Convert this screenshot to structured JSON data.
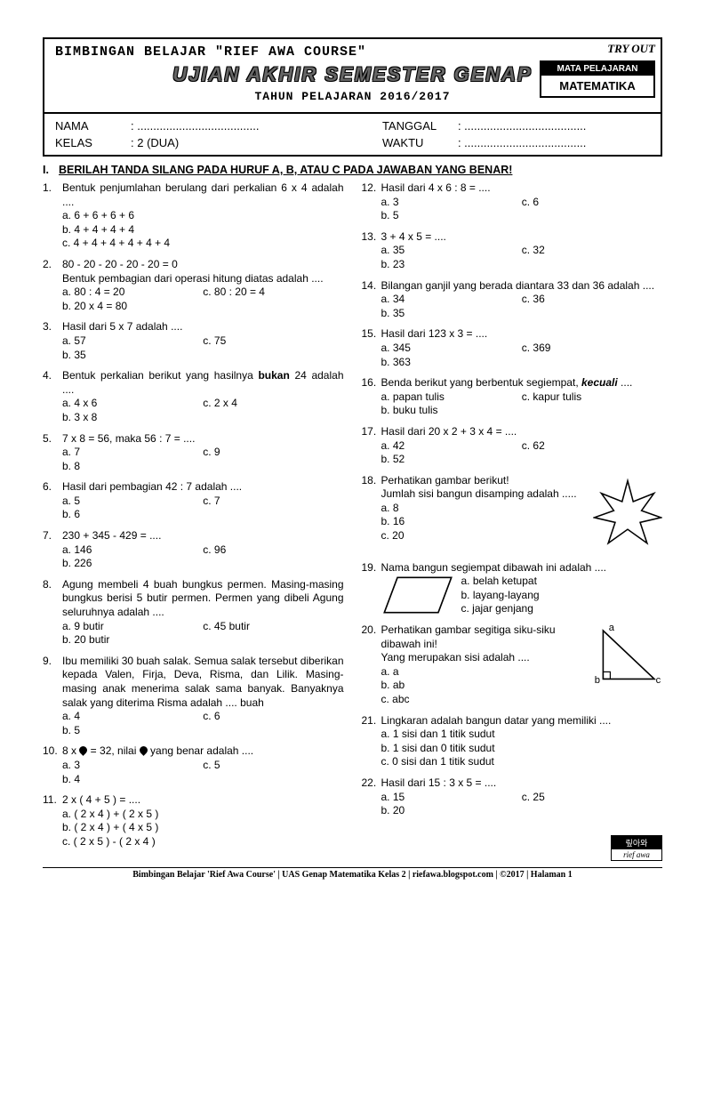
{
  "header": {
    "brand": "BIMBINGAN BELAJAR \"RIEF AWA COURSE\"",
    "main_title": "UJIAN AKHIR SEMESTER GENAP",
    "year_line": "TAHUN PELAJARAN 2016/2017",
    "tryout": "TRY OUT",
    "subject_head": "MATA PELAJARAN",
    "subject": "MATEMATIKA",
    "nama_label": "NAMA",
    "nama_value": ": ......................................",
    "tanggal_label": "TANGGAL",
    "tanggal_value": ": ......................................",
    "kelas_label": "KELAS",
    "kelas_value": ": 2 (DUA)",
    "waktu_label": "WAKTU",
    "waktu_value": ": ......................................"
  },
  "section": {
    "roman": "I.",
    "title": "BERILAH TANDA SILANG PADA HURUF A, B, ATAU C PADA JAWABAN YANG BENAR!"
  },
  "left": [
    {
      "n": "1.",
      "t": "Bentuk penjumlahan berulang dari perkalian 6 x 4 adalah ....",
      "justify": true,
      "o": [
        "a.  6 + 6 + 6 + 6",
        "b.  4 + 4 + 4 + 4",
        "c.  4 + 4 + 4 + 4 + 4 + 4"
      ]
    },
    {
      "n": "2.",
      "t": "80 - 20 - 20 - 20 - 20 = 0",
      "t2": "Bentuk pembagian dari operasi hitung diatas adalah ....",
      "o2": [
        [
          "a.  80 : 4 = 20",
          "c.  80 : 20 = 4"
        ],
        [
          "b.  20 x 4 = 80",
          ""
        ]
      ]
    },
    {
      "n": "3.",
      "t": "Hasil dari 5 x 7 adalah ....",
      "o2": [
        [
          "a.  57",
          "c.  75"
        ],
        [
          "b.  35",
          ""
        ]
      ]
    },
    {
      "n": "4.",
      "t": "Bentuk perkalian berikut yang hasilnya <b>bukan</b> 24 adalah ....",
      "justify": true,
      "html": true,
      "o2": [
        [
          "a.  4 x 6",
          "c.  2 x 4"
        ],
        [
          "b.  3 x 8",
          ""
        ]
      ]
    },
    {
      "n": "5.",
      "t": "7 x 8 = 56, maka 56 : 7 = ....",
      "o2": [
        [
          "a.  7",
          "c.  9"
        ],
        [
          "b.  8",
          ""
        ]
      ]
    },
    {
      "n": "6.",
      "t": "Hasil dari pembagian 42 : 7 adalah ....",
      "o2": [
        [
          "a.  5",
          "c.  7"
        ],
        [
          "b.  6",
          ""
        ]
      ]
    },
    {
      "n": "7.",
      "t": "230 + 345 - 429 = ....",
      "o2": [
        [
          "a.  146",
          "c.  96"
        ],
        [
          "b.  226",
          ""
        ]
      ]
    },
    {
      "n": "8.",
      "t": "Agung membeli 4 buah bungkus permen. Masing-masing bungkus berisi 5 butir permen. Permen yang dibeli Agung seluruhnya adalah ....",
      "justify": true,
      "o2": [
        [
          "a.  9 butir",
          "c.  45 butir"
        ],
        [
          "b.  20 butir",
          ""
        ]
      ]
    },
    {
      "n": "9.",
      "t": "Ibu memiliki 30 buah salak. Semua salak tersebut diberikan kepada Valen, Firja, Deva, Risma, dan Lilik. Masing-masing anak menerima salak sama banyak. Banyaknya salak yang diterima Risma adalah .... buah",
      "justify": true,
      "o2": [
        [
          "a.  4",
          "c.  6"
        ],
        [
          "b.  5",
          ""
        ]
      ]
    },
    {
      "n": "10.",
      "t": "8 x <span class='droplet'></span> = 32, nilai <span class='droplet'></span> yang benar adalah ....",
      "justify": true,
      "html": true,
      "o2": [
        [
          "a.  3",
          "c.  5"
        ],
        [
          "b.  4",
          ""
        ]
      ]
    },
    {
      "n": "11.",
      "t": "2 x ( 4 + 5 ) = ....",
      "o": [
        "a.  ( 2 x 4 ) + ( 2 x 5 )",
        "b.  ( 2 x 4 ) + ( 4 x 5 )",
        "c.  ( 2 x 5 ) - ( 2 x 4 )"
      ]
    }
  ],
  "right": [
    {
      "n": "12.",
      "t": "Hasil dari 4 x 6 : 8 = ....",
      "o2": [
        [
          "a.  3",
          "c.  6"
        ],
        [
          "b.  5",
          ""
        ]
      ]
    },
    {
      "n": "13.",
      "t": "3 + 4 x 5 = ....",
      "o2": [
        [
          "a.  35",
          "c.  32"
        ],
        [
          "b.  23",
          ""
        ]
      ]
    },
    {
      "n": "14.",
      "t": "Bilangan ganjil yang berada diantara 33 dan 36 adalah ....",
      "justify": true,
      "o2": [
        [
          "a.  34",
          "c.  36"
        ],
        [
          "b.  35",
          ""
        ]
      ]
    },
    {
      "n": "15.",
      "t": "Hasil dari 123 x 3 = ....",
      "o2": [
        [
          "a.  345",
          "c.  369"
        ],
        [
          "b.  363",
          ""
        ]
      ]
    },
    {
      "n": "16.",
      "t": "Benda berikut yang berbentuk segiempat, <b><i>kecuali</i></b> ....",
      "justify": true,
      "html": true,
      "o2": [
        [
          "a.  papan tulis",
          "c.  kapur tulis"
        ],
        [
          "b.  buku tulis",
          ""
        ]
      ]
    },
    {
      "n": "17.",
      "t": "Hasil dari 20 x 2 + 3 x 4 = ....",
      "o2": [
        [
          "a.  42",
          "c.  62"
        ],
        [
          "b.  52",
          ""
        ]
      ]
    },
    {
      "n": "18.",
      "t": "Perhatikan gambar berikut!",
      "star": true,
      "t2": "Jumlah sisi bangun disamping adalah .....",
      "o": [
        "a.  8",
        "b.  16",
        "c.  20"
      ]
    },
    {
      "n": "19.",
      "t": "Nama bangun segiempat dibawah ini adalah ....",
      "para": true,
      "o": [
        "a.  belah ketupat",
        "b.  layang-layang",
        "c.  jajar genjang"
      ]
    },
    {
      "n": "20.",
      "t": "Perhatikan gambar segitiga siku-siku dibawah ini!",
      "tri": true,
      "t2": "Yang merupakan sisi adalah ....",
      "o": [
        "a.  a",
        "b.  ab",
        "c.  abc"
      ]
    },
    {
      "n": "21.",
      "t": "Lingkaran adalah bangun datar yang memiliki ....",
      "justify": true,
      "o": [
        "a.  1 sisi dan 1 titik sudut",
        "b.  1 sisi dan 0 titik sudut",
        "c.  0 sisi dan 1 titik sudut"
      ]
    },
    {
      "n": "22.",
      "t": "Hasil dari 15 : 3 x 5 = ....",
      "o2": [
        [
          "a.  15",
          "c.  25"
        ],
        [
          "b.  20",
          ""
        ]
      ]
    }
  ],
  "footer": "Bimbingan Belajar 'Rief Awa Course' | UAS  Genap Matematika Kelas 2 | riefawa.blogspot.com | ©2017 | Halaman 1",
  "logo": {
    "top": "맆아와",
    "bot": "rief awa"
  }
}
